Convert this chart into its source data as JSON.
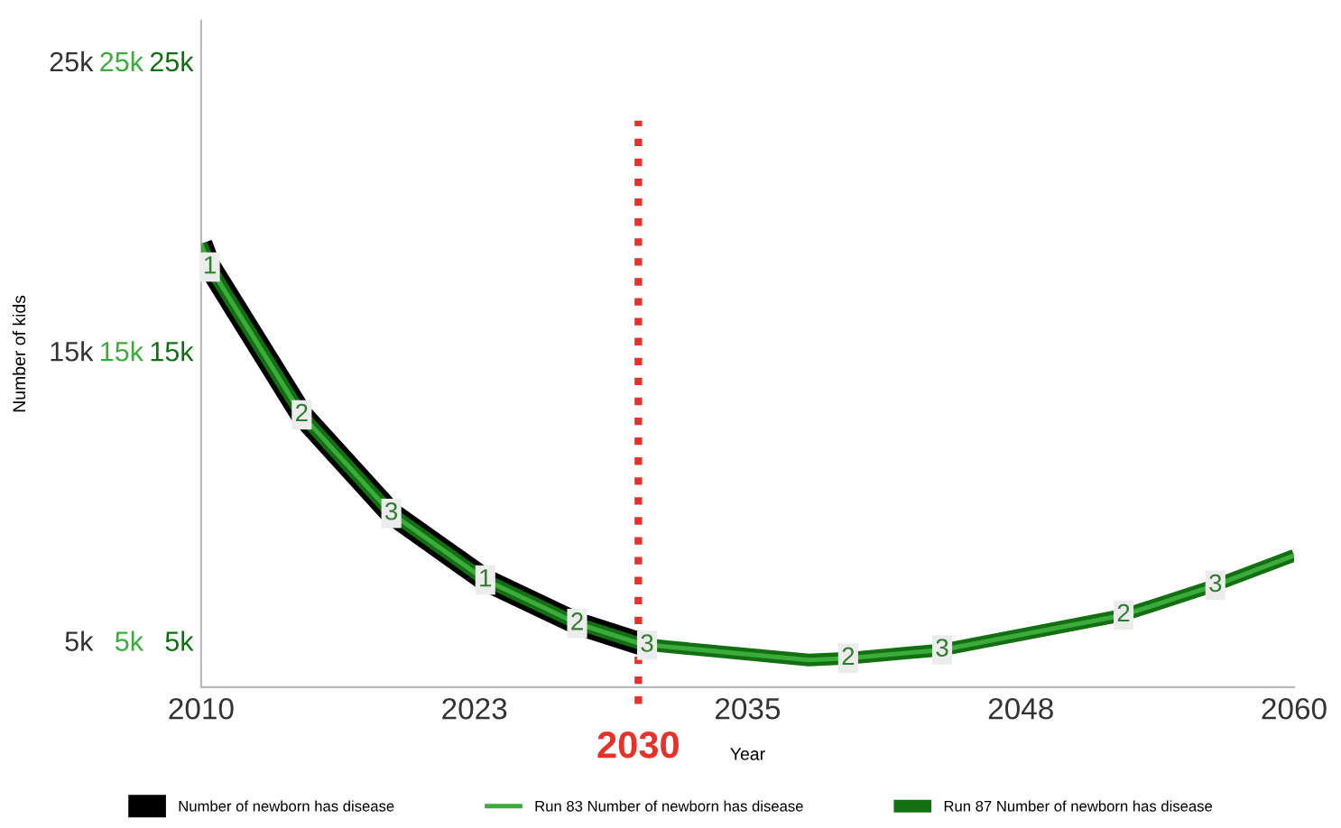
{
  "chart_data": {
    "type": "line",
    "xlabel": "Year",
    "ylabel": "Number of kids",
    "xlim": [
      2010,
      2060
    ],
    "xticks": [
      2010,
      {
        "value": 2022.5,
        "label": "2023"
      },
      2035,
      {
        "value": 2047.5,
        "label": "2048"
      },
      2060
    ],
    "ylim": [
      3400,
      26400
    ],
    "yticks": [
      {
        "value": 5000,
        "label": "5k"
      },
      {
        "value": 15000,
        "label": "15k"
      },
      {
        "value": 25000,
        "label": "25k"
      }
    ],
    "y2lim": [
      3400,
      26400
    ],
    "y2ticks": [
      {
        "value": 5000,
        "label": "5k"
      },
      {
        "value": 15000,
        "label": "15k"
      },
      {
        "value": 25000,
        "label": "25k"
      }
    ],
    "y3lim": [
      3400,
      26400
    ],
    "y3ticks": [
      {
        "value": 5000,
        "label": "5k"
      },
      {
        "value": 15000,
        "label": "15k"
      },
      {
        "value": 25000,
        "label": "25k"
      }
    ],
    "grid": false,
    "legend": "bottom",
    "line_style": "solid",
    "series": [
      {
        "name": "Number of newborn has disease",
        "color": "#000000",
        "axis": "y",
        "x": [
          2010,
          2010.4,
          2014.6,
          2018.7,
          2023,
          2027.2,
          2030.1
        ],
        "values": [
          18700,
          17900,
          12800,
          9400,
          7100,
          5600,
          4900
        ]
      },
      {
        "name": "Run 83 Number of newborn has disease",
        "color": "#3cab3c",
        "axis": "y2",
        "x": [
          2010,
          2010.4,
          2014.6,
          2018.7,
          2023,
          2027.2,
          2030.1,
          2031.3,
          2037.8,
          2039.6,
          2043.9,
          2052.2,
          2056.4,
          2060
        ],
        "values": [
          18700,
          17900,
          12800,
          9400,
          7100,
          5600,
          4900,
          4800,
          4340,
          4400,
          4690,
          5890,
          6920,
          7950
        ]
      },
      {
        "name": "Run 87 Number of newborn has disease",
        "color": "#127012",
        "axis": "y3",
        "x": [
          2010,
          2010.4,
          2014.6,
          2018.7,
          2023,
          2027.2,
          2030.1,
          2031.3,
          2037.8,
          2039.6,
          2043.9,
          2052.2,
          2056.4,
          2060
        ],
        "values": [
          18700,
          17900,
          12800,
          9400,
          7100,
          5600,
          4900,
          4800,
          4340,
          4400,
          4690,
          5890,
          6920,
          7950
        ]
      }
    ],
    "ref_lines": [
      {
        "axis": "x",
        "value": 2030,
        "label": "2030",
        "color": "#e8312a",
        "line_style": "dotted"
      }
    ],
    "annotations": [
      {
        "text": "1",
        "x": 2010.4,
        "y": 17900
      },
      {
        "text": "2",
        "x": 2014.6,
        "y": 12800
      },
      {
        "text": "3",
        "x": 2018.7,
        "y": 9400
      },
      {
        "text": "1",
        "x": 2023,
        "y": 7100
      },
      {
        "text": "2",
        "x": 2027.2,
        "y": 5600
      },
      {
        "text": "3",
        "x": 2030.4,
        "y": 4850
      },
      {
        "text": "2",
        "x": 2039.6,
        "y": 4400
      },
      {
        "text": "3",
        "x": 2043.9,
        "y": 4690
      },
      {
        "text": "2",
        "x": 2052.2,
        "y": 5890
      },
      {
        "text": "3",
        "x": 2056.4,
        "y": 6920
      }
    ]
  }
}
